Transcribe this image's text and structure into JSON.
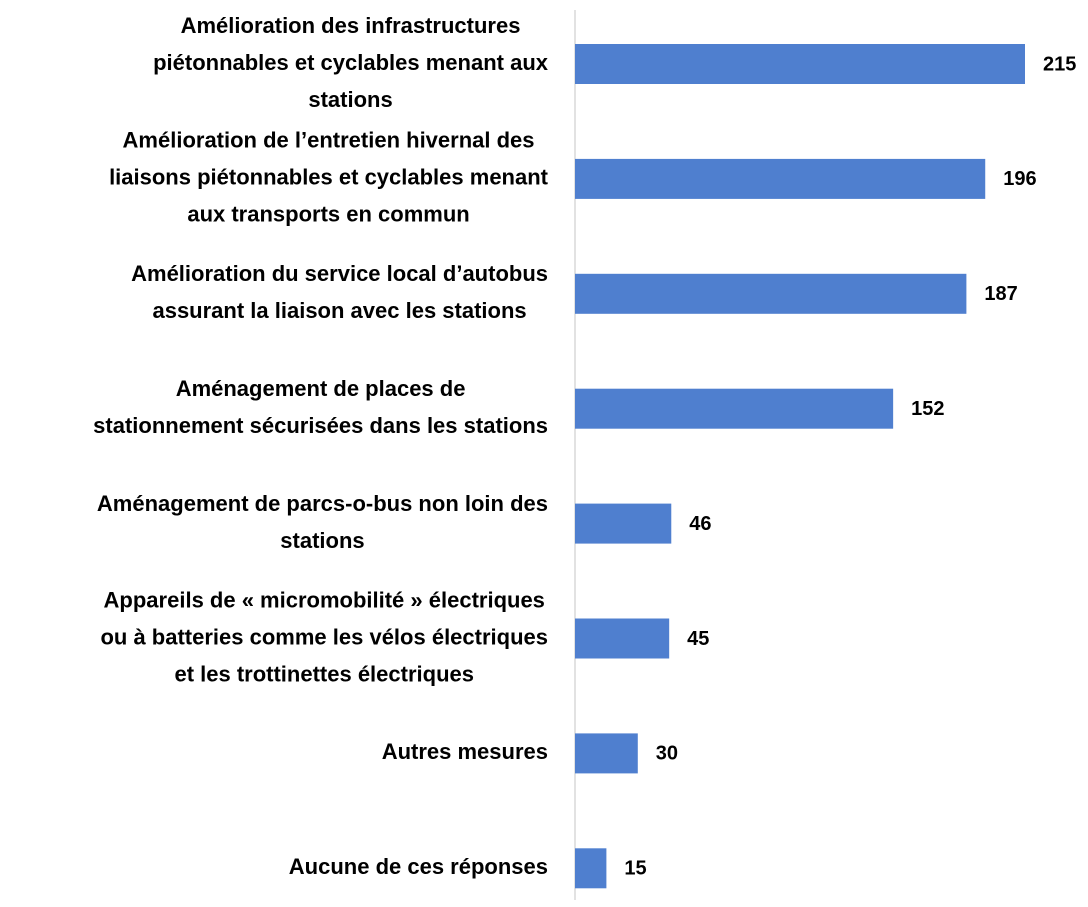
{
  "chart_data": {
    "type": "bar",
    "orientation": "horizontal",
    "color": "#4f7fcf",
    "categories": [
      [
        "Amélioration des infrastructures",
        "piétonnables et cyclables menant aux",
        "stations"
      ],
      [
        "Amélioration de l’entretien hivernal des",
        "liaisons piétonnables et cyclables menant",
        "aux transports en commun"
      ],
      [
        "Amélioration du service local d’autobus",
        "assurant la liaison avec les stations"
      ],
      [
        "Aménagement de places de",
        "stationnement sécurisées dans les stations"
      ],
      [
        "Aménagement de parcs-o-bus non loin des",
        "stations"
      ],
      [
        "Appareils de « micromobilité » électriques",
        "ou à batteries comme les vélos électriques",
        "et les trottinettes électriques"
      ],
      [
        "Autres mesures"
      ],
      [
        "Aucune de ces réponses"
      ]
    ],
    "values": [
      215,
      196,
      187,
      152,
      46,
      45,
      30,
      15
    ]
  }
}
